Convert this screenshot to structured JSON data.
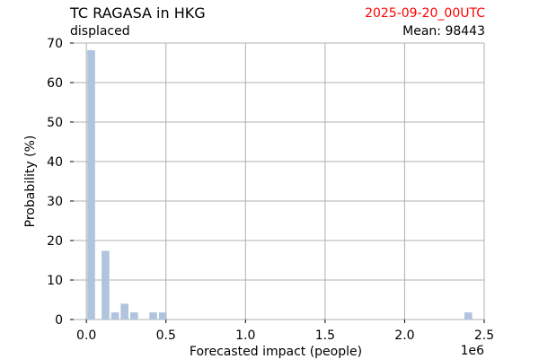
{
  "header": {
    "title": "TC RAGASA in HKG",
    "subtitle": "displaced",
    "date": "2025-09-20_00UTC",
    "mean_label": "Mean: 98443"
  },
  "colors": {
    "bar": "#b0c4de",
    "grid": "#b0b0b0",
    "date": "#ff0000",
    "text": "#000000"
  },
  "chart_data": {
    "type": "bar",
    "xlabel": "Forecasted impact (people)",
    "ylabel": "Probability (%)",
    "x_offset_label": "1e6",
    "xlim": [
      -0.08,
      2.5
    ],
    "ylim": [
      0,
      70
    ],
    "x_ticks": [
      0.0,
      0.5,
      1.0,
      1.5,
      2.0,
      2.5
    ],
    "x_tick_labels": [
      "0.0",
      "0.5",
      "1.0",
      "1.5",
      "2.0",
      "2.5"
    ],
    "y_ticks": [
      0,
      10,
      20,
      30,
      40,
      50,
      60,
      70
    ],
    "y_tick_labels": [
      "0",
      "10",
      "20",
      "30",
      "40",
      "50",
      "60",
      "70"
    ],
    "grid": true,
    "bin_width": 0.06,
    "bins": [
      {
        "x": 0.0,
        "value": 68.2
      },
      {
        "x": 0.09,
        "value": 17.4
      },
      {
        "x": 0.15,
        "value": 1.8
      },
      {
        "x": 0.21,
        "value": 4.0
      },
      {
        "x": 0.27,
        "value": 1.8
      },
      {
        "x": 0.39,
        "value": 1.8
      },
      {
        "x": 0.45,
        "value": 1.8
      },
      {
        "x": 2.37,
        "value": 1.8
      }
    ]
  }
}
